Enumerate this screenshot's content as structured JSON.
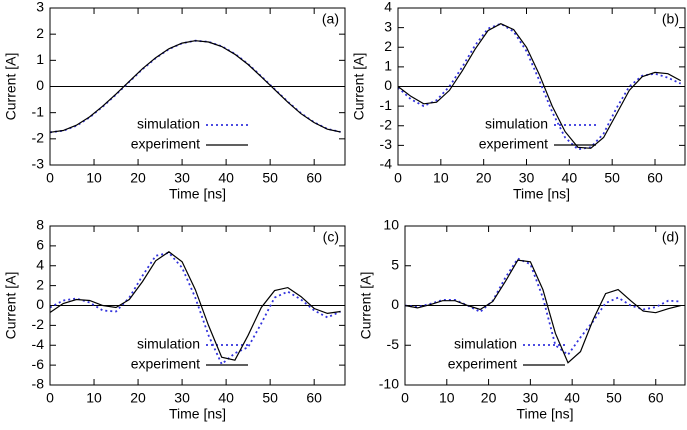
{
  "chart_data": [
    {
      "type": "line",
      "label": "(a)",
      "xlabel": "Time [ns]",
      "ylabel": "Current [A]",
      "xlim": [
        0,
        67
      ],
      "xticks": [
        0,
        10,
        20,
        30,
        40,
        50,
        60
      ],
      "ylim": [
        -3,
        3
      ],
      "yticks": [
        -3,
        -2,
        -1,
        0,
        1,
        2,
        3
      ],
      "x": [
        0,
        3,
        6,
        9,
        12,
        15,
        18,
        21,
        24,
        27,
        30,
        33,
        36,
        39,
        42,
        45,
        48,
        51,
        54,
        57,
        60,
        63,
        66
      ],
      "series": [
        {
          "name": "simulation",
          "color": "#3333dd",
          "dash": "dotted",
          "values": [
            -1.75,
            -1.69,
            -1.5,
            -1.18,
            -0.77,
            -0.31,
            0.18,
            0.66,
            1.08,
            1.43,
            1.65,
            1.75,
            1.71,
            1.54,
            1.25,
            0.86,
            0.39,
            -0.1,
            -0.58,
            -1.02,
            -1.37,
            -1.62,
            -1.74
          ]
        },
        {
          "name": "experiment",
          "color": "#000000",
          "dash": "solid",
          "values": [
            -1.75,
            -1.68,
            -1.48,
            -1.16,
            -0.75,
            -0.29,
            0.2,
            0.68,
            1.1,
            1.44,
            1.66,
            1.75,
            1.7,
            1.53,
            1.23,
            0.84,
            0.37,
            -0.12,
            -0.6,
            -1.04,
            -1.38,
            -1.63,
            -1.74
          ]
        }
      ]
    },
    {
      "type": "line",
      "label": "(b)",
      "xlabel": "Time [ns]",
      "ylabel": "Current [A]",
      "xlim": [
        0,
        67
      ],
      "xticks": [
        0,
        10,
        20,
        30,
        40,
        50,
        60
      ],
      "ylim": [
        -4,
        4
      ],
      "yticks": [
        -4,
        -3,
        -2,
        -1,
        0,
        1,
        2,
        3,
        4
      ],
      "x": [
        0,
        3,
        6,
        9,
        12,
        15,
        18,
        21,
        24,
        27,
        30,
        33,
        36,
        39,
        42,
        45,
        48,
        51,
        54,
        57,
        60,
        63,
        66
      ],
      "series": [
        {
          "name": "simulation",
          "color": "#3333dd",
          "dash": "dotted",
          "values": [
            -0.05,
            -0.65,
            -1.0,
            -0.7,
            0.0,
            1.0,
            2.1,
            2.95,
            3.2,
            2.8,
            1.8,
            0.3,
            -1.3,
            -2.6,
            -3.2,
            -3.1,
            -2.4,
            -1.1,
            0.0,
            0.55,
            0.65,
            0.45,
            0.15
          ]
        },
        {
          "name": "experiment",
          "color": "#000000",
          "dash": "solid",
          "values": [
            0,
            -0.5,
            -0.88,
            -0.8,
            -0.2,
            0.8,
            1.9,
            2.85,
            3.2,
            2.9,
            2.0,
            0.6,
            -1.0,
            -2.3,
            -3.1,
            -3.15,
            -2.6,
            -1.4,
            -0.2,
            0.5,
            0.72,
            0.65,
            0.3
          ]
        }
      ]
    },
    {
      "type": "line",
      "label": "(c)",
      "xlabel": "Time [ns]",
      "ylabel": "Current [A]",
      "xlim": [
        0,
        67
      ],
      "xticks": [
        0,
        10,
        20,
        30,
        40,
        50,
        60
      ],
      "ylim": [
        -8,
        8
      ],
      "yticks": [
        -8,
        -6,
        -4,
        -2,
        0,
        2,
        4,
        6,
        8
      ],
      "x": [
        0,
        3,
        6,
        9,
        12,
        15,
        18,
        21,
        24,
        27,
        30,
        33,
        36,
        39,
        42,
        45,
        48,
        51,
        54,
        57,
        60,
        63,
        66
      ],
      "series": [
        {
          "name": "simulation",
          "color": "#3333dd",
          "dash": "dotted",
          "values": [
            -0.2,
            0.5,
            0.7,
            0.3,
            -0.5,
            -0.6,
            0.8,
            3.0,
            5.0,
            5.3,
            3.8,
            0.8,
            -3.0,
            -5.9,
            -4.8,
            -4.2,
            -1.8,
            0.8,
            1.4,
            0.6,
            -0.5,
            -1.2,
            -0.6
          ]
        },
        {
          "name": "experiment",
          "color": "#000000",
          "dash": "solid",
          "values": [
            -0.7,
            0.2,
            0.6,
            0.5,
            0.0,
            -0.2,
            0.6,
            2.4,
            4.5,
            5.4,
            4.4,
            1.6,
            -2.0,
            -5.2,
            -5.5,
            -3.0,
            -0.2,
            1.5,
            1.8,
            0.9,
            -0.3,
            -0.8,
            -0.6
          ]
        }
      ]
    },
    {
      "type": "line",
      "label": "(d)",
      "xlabel": "Time [ns]",
      "ylabel": "Current [A]",
      "xlim": [
        0,
        67
      ],
      "xticks": [
        0,
        10,
        20,
        30,
        40,
        50,
        60
      ],
      "ylim": [
        -10,
        10
      ],
      "yticks": [
        -10,
        -5,
        0,
        5,
        10
      ],
      "x": [
        0,
        3,
        6,
        9,
        12,
        15,
        18,
        21,
        24,
        27,
        30,
        33,
        36,
        39,
        42,
        45,
        48,
        51,
        54,
        57,
        60,
        63,
        66
      ],
      "series": [
        {
          "name": "simulation",
          "color": "#3333dd",
          "dash": "dotted",
          "values": [
            0,
            -0.2,
            0.2,
            0.7,
            0.7,
            0.0,
            -0.8,
            0.6,
            3.5,
            5.9,
            5.2,
            1.0,
            -5.0,
            -6.2,
            -4.0,
            -2.0,
            0.3,
            1.0,
            0.0,
            -0.5,
            -0.2,
            0.6,
            0.5
          ]
        },
        {
          "name": "experiment",
          "color": "#000000",
          "dash": "solid",
          "values": [
            0,
            -0.3,
            0.1,
            0.6,
            0.6,
            0.0,
            -0.5,
            0.5,
            3.0,
            5.7,
            5.5,
            2.0,
            -3.5,
            -7.2,
            -5.8,
            -1.8,
            1.5,
            2.0,
            0.6,
            -0.7,
            -0.9,
            -0.4,
            0.0
          ]
        }
      ]
    }
  ]
}
